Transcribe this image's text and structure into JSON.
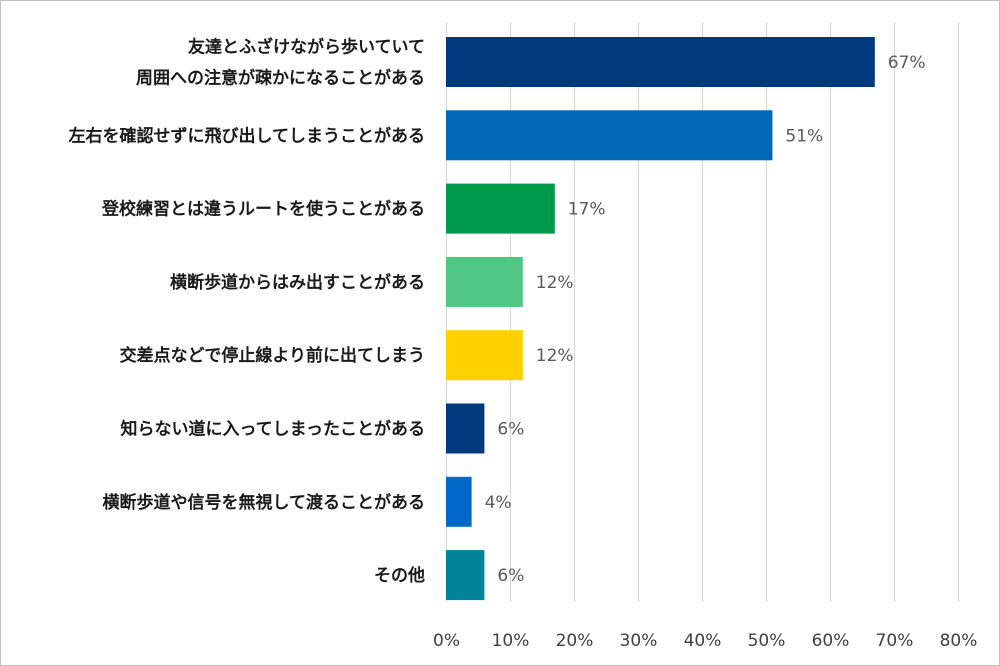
{
  "chart_data": {
    "type": "bar",
    "orientation": "horizontal",
    "categories": [
      [
        "友達とふざけながら歩いていて",
        "周囲への注意が疎かになることがある"
      ],
      [
        "左右を確認せずに飛び出してしまうことがある"
      ],
      [
        "登校練習とは違うルートを使うことがある"
      ],
      [
        "横断歩道からはみ出すことがある"
      ],
      [
        "交差点などで停止線より前に出てしまう"
      ],
      [
        "知らない道に入ってしまったことがある"
      ],
      [
        "横断歩道や信号を無視して渡ることがある"
      ],
      [
        "その他"
      ]
    ],
    "values": [
      67,
      51,
      17,
      12,
      12,
      6,
      4,
      6
    ],
    "value_labels": [
      "67%",
      "51%",
      "17%",
      "12%",
      "12%",
      "6%",
      "4%",
      "6%"
    ],
    "bar_colors": [
      "#003A7D",
      "#0068B7",
      "#00984A",
      "#52C785",
      "#FFD100",
      "#003A7D",
      "#0068C9",
      "#008299"
    ],
    "xlim": [
      0,
      80
    ],
    "x_ticks": [
      0,
      10,
      20,
      30,
      40,
      50,
      60,
      70,
      80
    ],
    "x_tick_labels": [
      "0%",
      "10%",
      "20%",
      "30%",
      "40%",
      "50%",
      "60%",
      "70%",
      "80%"
    ],
    "grid": true,
    "grid_color": "#d9d9d9",
    "title": "",
    "xlabel": "",
    "ylabel": ""
  }
}
